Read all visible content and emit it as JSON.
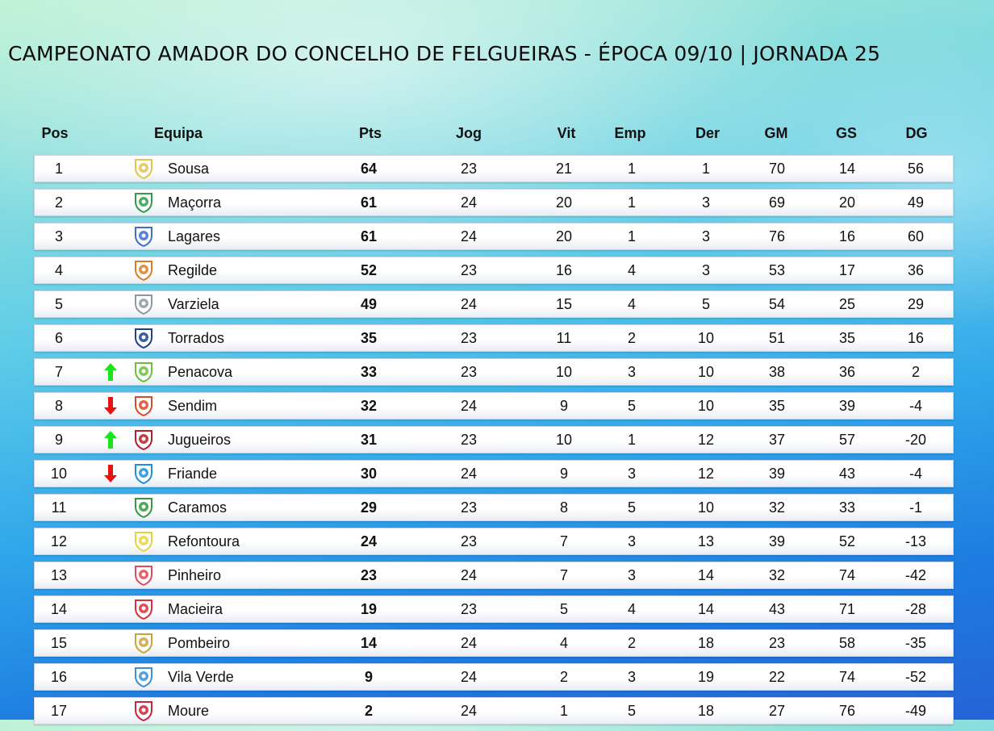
{
  "title": "CAMPEONATO AMADOR DO CONCELHO DE FELGUEIRAS - ÉPOCA 09/10 | JORNADA 25",
  "columns": [
    "Pos",
    "Equipa",
    "Pts",
    "Jog",
    "Vit",
    "Emp",
    "Der",
    "GM",
    "GS",
    "DG"
  ],
  "colors": {
    "up": "#19e619",
    "down": "#e81212"
  },
  "rows": [
    {
      "pos": "1",
      "team": "Sousa",
      "pts": "64",
      "jog": "23",
      "vit": "21",
      "emp": "1",
      "der": "1",
      "gm": "70",
      "gs": "14",
      "dg": "56",
      "trend": "",
      "badge": "sousa-badge-icon",
      "badge_color": "#e8c24a"
    },
    {
      "pos": "2",
      "team": "Maçorra",
      "pts": "61",
      "jog": "24",
      "vit": "20",
      "emp": "1",
      "der": "3",
      "gm": "69",
      "gs": "20",
      "dg": "49",
      "trend": "",
      "badge": "macorra-badge-icon",
      "badge_color": "#2e9e4a"
    },
    {
      "pos": "3",
      "team": "Lagares",
      "pts": "61",
      "jog": "24",
      "vit": "20",
      "emp": "1",
      "der": "3",
      "gm": "76",
      "gs": "16",
      "dg": "60",
      "trend": "",
      "badge": "lagares-badge-icon",
      "badge_color": "#3a6fd0"
    },
    {
      "pos": "4",
      "team": "Regilde",
      "pts": "52",
      "jog": "23",
      "vit": "16",
      "emp": "4",
      "der": "3",
      "gm": "53",
      "gs": "17",
      "dg": "36",
      "trend": "",
      "badge": "regilde-badge-icon",
      "badge_color": "#e07b22"
    },
    {
      "pos": "5",
      "team": "Varziela",
      "pts": "49",
      "jog": "24",
      "vit": "15",
      "emp": "4",
      "der": "5",
      "gm": "54",
      "gs": "25",
      "dg": "29",
      "trend": "",
      "badge": "varziela-badge-icon",
      "badge_color": "#8c9aa0"
    },
    {
      "pos": "6",
      "team": "Torrados",
      "pts": "35",
      "jog": "23",
      "vit": "11",
      "emp": "2",
      "der": "10",
      "gm": "51",
      "gs": "35",
      "dg": "16",
      "trend": "",
      "badge": "torrados-badge-icon",
      "badge_color": "#1f3f8f"
    },
    {
      "pos": "7",
      "team": "Penacova",
      "pts": "33",
      "jog": "23",
      "vit": "10",
      "emp": "3",
      "der": "10",
      "gm": "38",
      "gs": "36",
      "dg": "2",
      "trend": "up",
      "badge": "penacova-badge-icon",
      "badge_color": "#6bbf3a"
    },
    {
      "pos": "8",
      "team": "Sendim",
      "pts": "32",
      "jog": "24",
      "vit": "9",
      "emp": "5",
      "der": "10",
      "gm": "35",
      "gs": "39",
      "dg": "-4",
      "trend": "down",
      "badge": "sendim-badge-icon",
      "badge_color": "#d84a2a"
    },
    {
      "pos": "9",
      "team": "Jugueiros",
      "pts": "31",
      "jog": "23",
      "vit": "10",
      "emp": "1",
      "der": "12",
      "gm": "37",
      "gs": "57",
      "dg": "-20",
      "trend": "up",
      "badge": "jugueiros-badge-icon",
      "badge_color": "#b3202a"
    },
    {
      "pos": "10",
      "team": "Friande",
      "pts": "30",
      "jog": "24",
      "vit": "9",
      "emp": "3",
      "der": "12",
      "gm": "39",
      "gs": "43",
      "dg": "-4",
      "trend": "down",
      "badge": "friande-badge-icon",
      "badge_color": "#1e8fd8"
    },
    {
      "pos": "11",
      "team": "Caramos",
      "pts": "29",
      "jog": "23",
      "vit": "8",
      "emp": "5",
      "der": "10",
      "gm": "32",
      "gs": "33",
      "dg": "-1",
      "trend": "",
      "badge": "caramos-badge-icon",
      "badge_color": "#2f9a3e"
    },
    {
      "pos": "12",
      "team": "Refontoura",
      "pts": "24",
      "jog": "23",
      "vit": "7",
      "emp": "3",
      "der": "13",
      "gm": "39",
      "gs": "52",
      "dg": "-13",
      "trend": "",
      "badge": "refontoura-badge-icon",
      "badge_color": "#e8d23a"
    },
    {
      "pos": "13",
      "team": "Pinheiro",
      "pts": "23",
      "jog": "24",
      "vit": "7",
      "emp": "3",
      "der": "14",
      "gm": "32",
      "gs": "74",
      "dg": "-42",
      "trend": "",
      "badge": "pinheiro-badge-icon",
      "badge_color": "#e04a5a"
    },
    {
      "pos": "14",
      "team": "Macieira",
      "pts": "19",
      "jog": "23",
      "vit": "5",
      "emp": "4",
      "der": "14",
      "gm": "43",
      "gs": "71",
      "dg": "-28",
      "trend": "",
      "badge": "macieira-badge-icon",
      "badge_color": "#d8303a"
    },
    {
      "pos": "15",
      "team": "Pombeiro",
      "pts": "14",
      "jog": "24",
      "vit": "4",
      "emp": "2",
      "der": "18",
      "gm": "23",
      "gs": "58",
      "dg": "-35",
      "trend": "",
      "badge": "pombeiro-badge-icon",
      "badge_color": "#c9a23a"
    },
    {
      "pos": "16",
      "team": "Vila Verde",
      "pts": "9",
      "jog": "24",
      "vit": "2",
      "emp": "3",
      "der": "19",
      "gm": "22",
      "gs": "74",
      "dg": "-52",
      "trend": "",
      "badge": "vila-verde-badge-icon",
      "badge_color": "#3a8fd8"
    },
    {
      "pos": "17",
      "team": "Moure",
      "pts": "2",
      "jog": "24",
      "vit": "1",
      "emp": "5",
      "der": "18",
      "gm": "27",
      "gs": "76",
      "dg": "-49",
      "trend": "",
      "badge": "moure-badge-icon",
      "badge_color": "#c8283a"
    }
  ]
}
